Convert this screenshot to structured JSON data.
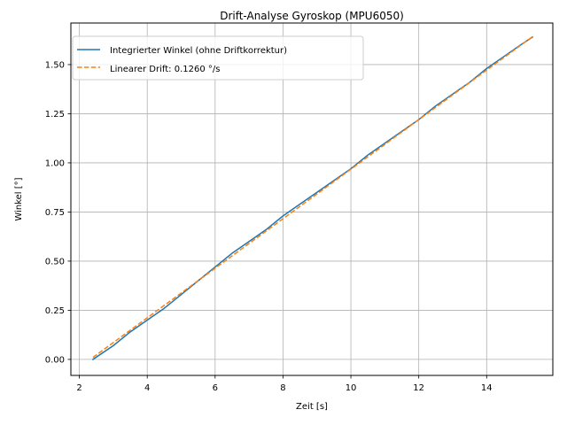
{
  "chart_data": {
    "type": "line",
    "title": "Drift-Analyse Gyroskop (MPU6050)",
    "xlabel": "Zeit [s]",
    "ylabel": "Winkel [°]",
    "xlim": [
      1.75,
      15.95
    ],
    "ylim": [
      -0.0815,
      1.7115
    ],
    "xticks": [
      2,
      4,
      6,
      8,
      10,
      12,
      14
    ],
    "yticks": [
      0.0,
      0.25,
      0.5,
      0.75,
      1.0,
      1.25,
      1.5
    ],
    "ytick_labels": [
      "0.00",
      "0.25",
      "0.50",
      "0.75",
      "1.00",
      "1.25",
      "1.50"
    ],
    "grid": true,
    "legend_position": "top-left",
    "series": [
      {
        "name": "Integrierter Winkel (ohne Driftkorrektur)",
        "color": "#1f77b4",
        "style": "solid",
        "x": [
          2.4,
          3.0,
          3.5,
          4.0,
          4.5,
          5.0,
          5.5,
          6.0,
          6.5,
          7.0,
          7.5,
          8.0,
          8.5,
          9.0,
          9.5,
          10.0,
          10.5,
          11.0,
          11.5,
          12.0,
          12.5,
          13.0,
          13.5,
          14.0,
          14.5,
          15.0,
          15.35
        ],
        "y": [
          0.0,
          0.07,
          0.14,
          0.2,
          0.26,
          0.33,
          0.4,
          0.47,
          0.54,
          0.6,
          0.66,
          0.73,
          0.79,
          0.85,
          0.91,
          0.97,
          1.04,
          1.1,
          1.16,
          1.22,
          1.29,
          1.35,
          1.41,
          1.48,
          1.54,
          1.6,
          1.64
        ]
      },
      {
        "name": "Linearer Drift: 0.1260 °/s",
        "color": "#ff7f0e",
        "style": "dashed",
        "x": [
          2.4,
          15.35
        ],
        "y": [
          0.01,
          1.642
        ]
      }
    ]
  }
}
